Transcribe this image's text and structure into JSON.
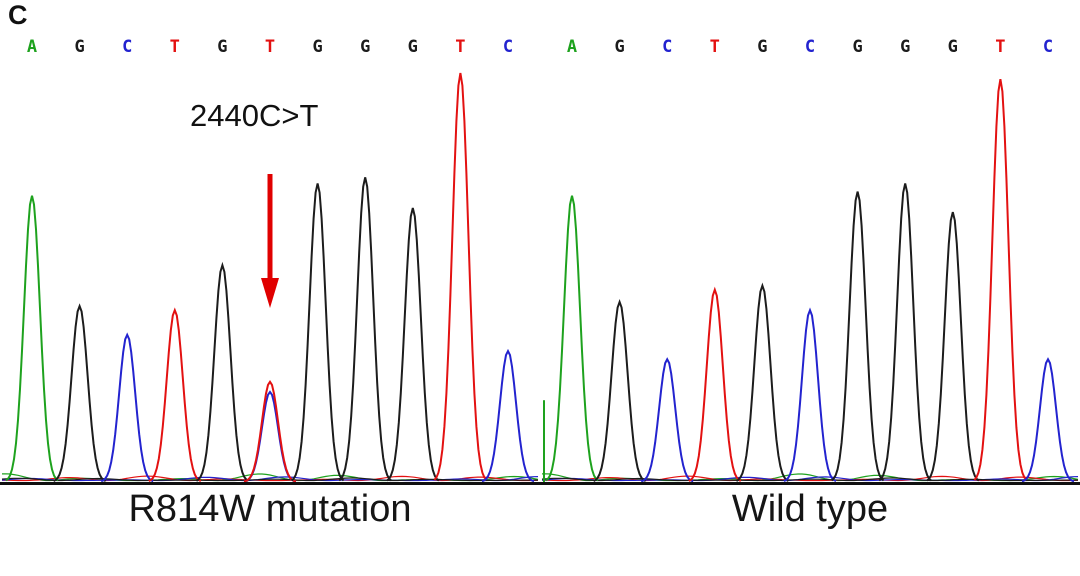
{
  "panel_label": "C",
  "annotation": {
    "text": "2440C>T"
  },
  "colors": {
    "A": "#1ea21e",
    "C": "#2323cf",
    "G": "#1c1c1c",
    "T": "#e31111",
    "arrow": "#e00000"
  },
  "chart_data": [
    {
      "type": "line",
      "title": "R814W mutation",
      "sequence": [
        "A",
        "G",
        "C",
        "T",
        "G",
        "T",
        "G",
        "G",
        "G",
        "T",
        "C"
      ],
      "peak_heights": [
        0.7,
        0.43,
        0.36,
        0.42,
        0.53,
        0.245,
        0.73,
        0.745,
        0.67,
        1.0,
        0.32
      ],
      "secondary_peak": {
        "index": 5,
        "base": "C",
        "height": 0.22
      },
      "mutation_index": 5
    },
    {
      "type": "line",
      "title": "Wild type",
      "sequence": [
        "A",
        "G",
        "C",
        "T",
        "G",
        "C",
        "G",
        "G",
        "G",
        "T",
        "C"
      ],
      "peak_heights": [
        0.7,
        0.44,
        0.3,
        0.47,
        0.48,
        0.42,
        0.71,
        0.73,
        0.66,
        0.985,
        0.3
      ],
      "edge_spike": 0.2
    }
  ]
}
